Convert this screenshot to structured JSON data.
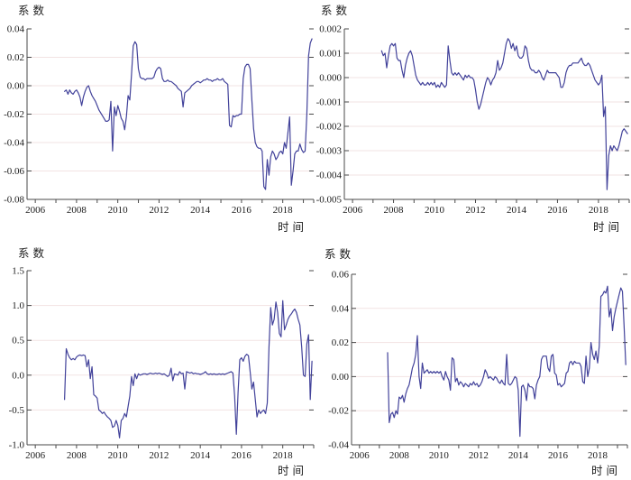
{
  "page": {
    "background": "#ffffff",
    "description_labels": {
      "y_axis_title": "系数",
      "x_axis_title": "时间"
    }
  },
  "chart_data": [
    {
      "id": "top-left",
      "type": "line",
      "title": "",
      "ylabel": "系数",
      "xlabel": "时间",
      "line_color": "#42429a",
      "grid_color": "#f2e3e3",
      "axis_color": "#4a4a4a",
      "grid": true,
      "legend": false,
      "ylim": [
        -0.08,
        0.04
      ],
      "yticks": [
        0.04,
        0.02,
        0,
        -0.02,
        -0.04,
        -0.06,
        -0.08
      ],
      "ytick_labels": [
        "0.04",
        "0.02",
        "0.00",
        "-0.02",
        "-0.04",
        "-0.06",
        "-0.08"
      ],
      "xlim": [
        2005.6,
        2019.5
      ],
      "xticks": [
        [
          2006,
          "2006"
        ],
        [
          2007,
          ""
        ],
        [
          2008,
          "2008"
        ],
        [
          2009,
          ""
        ],
        [
          2010,
          "2010"
        ],
        [
          2011,
          ""
        ],
        [
          2012,
          "2012"
        ],
        [
          2013,
          ""
        ],
        [
          2014,
          "2014"
        ],
        [
          2015,
          ""
        ],
        [
          2016,
          "2016"
        ],
        [
          2017,
          ""
        ],
        [
          2018,
          "2018"
        ],
        [
          2019,
          ""
        ],
        [
          2019.5,
          ""
        ]
      ],
      "series": {
        "name": "系数",
        "x_start": 2007.417,
        "x_step": 0.08333,
        "values": [
          -0.004,
          -0.003,
          -0.006,
          -0.003,
          -0.005,
          -0.006,
          -0.004,
          -0.003,
          -0.005,
          -0.008,
          -0.014,
          -0.008,
          -0.004,
          -0.001,
          0,
          -0.004,
          -0.007,
          -0.009,
          -0.011,
          -0.014,
          -0.017,
          -0.019,
          -0.021,
          -0.023,
          -0.025,
          -0.025,
          -0.024,
          -0.011,
          -0.046,
          -0.015,
          -0.021,
          -0.014,
          -0.018,
          -0.023,
          -0.025,
          -0.031,
          -0.022,
          -0.007,
          -0.01,
          0.008,
          0.028,
          0.031,
          0.029,
          0.012,
          0.006,
          0.005,
          0.005,
          0.004,
          0.005,
          0.005,
          0.005,
          0.005,
          0.006,
          0.01,
          0.012,
          0.013,
          0.012,
          0.005,
          0.003,
          0.003,
          0.004,
          0.003,
          0.003,
          0.002,
          0.001,
          0,
          -0.002,
          -0.003,
          -0.004,
          -0.015,
          -0.005,
          -0.004,
          -0.003,
          -0.002,
          0,
          0.001,
          0.002,
          0.003,
          0.003,
          0.002,
          0.003,
          0.004,
          0.004,
          0.005,
          0.004,
          0.004,
          0.003,
          0.004,
          0.004,
          0.005,
          0.004,
          0.004,
          0.005,
          0.003,
          0.002,
          0.001,
          -0.028,
          -0.029,
          -0.021,
          -0.022,
          -0.021,
          -0.021,
          -0.02,
          -0.02,
          0.005,
          0.013,
          0.015,
          0.015,
          0.012,
          -0.01,
          -0.03,
          -0.04,
          -0.043,
          -0.044,
          -0.044,
          -0.046,
          -0.071,
          -0.073,
          -0.052,
          -0.063,
          -0.05,
          -0.046,
          -0.048,
          -0.052,
          -0.05,
          -0.047,
          -0.046,
          -0.048,
          -0.04,
          -0.044,
          -0.033,
          -0.022,
          -0.07,
          -0.06,
          -0.048,
          -0.046,
          -0.046,
          -0.041,
          -0.045,
          -0.047,
          -0.046,
          -0.02,
          0.021,
          0.03,
          0.033
        ]
      }
    },
    {
      "id": "top-right",
      "type": "line",
      "title": "",
      "ylabel": "系数",
      "xlabel": "时间",
      "line_color": "#42429a",
      "grid_color": "#f2e3e3",
      "axis_color": "#4a4a4a",
      "grid": true,
      "legend": false,
      "ylim": [
        -0.005,
        0.002
      ],
      "yticks": [
        0.002,
        0.001,
        0,
        -0.001,
        -0.002,
        -0.003,
        -0.004,
        -0.005
      ],
      "ytick_labels": [
        "0.002",
        "0.001",
        "0.000",
        "-0.001",
        "-0.002",
        "-0.003",
        "-0.004",
        "-0.005"
      ],
      "xlim": [
        2005.6,
        2019.5
      ],
      "xticks": [
        [
          2006,
          "2006"
        ],
        [
          2007,
          ""
        ],
        [
          2008,
          "2008"
        ],
        [
          2009,
          ""
        ],
        [
          2010,
          "2010"
        ],
        [
          2011,
          ""
        ],
        [
          2012,
          "2012"
        ],
        [
          2013,
          ""
        ],
        [
          2014,
          "2014"
        ],
        [
          2015,
          ""
        ],
        [
          2016,
          "2016"
        ],
        [
          2017,
          ""
        ],
        [
          2018,
          "2018"
        ],
        [
          2019,
          ""
        ],
        [
          2019.5,
          ""
        ]
      ],
      "series": {
        "name": "系数",
        "x_start": 2007.417,
        "x_step": 0.08333,
        "values": [
          0.0011,
          0.0009,
          0.001,
          0.0004,
          0.0009,
          0.0013,
          0.0014,
          0.0013,
          0.0014,
          0.0008,
          0.0007,
          0.0007,
          0.0003,
          0,
          0.0005,
          0.0008,
          0.001,
          0.0011,
          0.0009,
          0.0005,
          0.0001,
          -0.0001,
          -0.0002,
          -0.0003,
          -0.0002,
          -0.0003,
          -0.0003,
          -0.0002,
          -0.0003,
          -0.0002,
          -0.0003,
          -0.0002,
          -0.0004,
          -0.0003,
          -0.0004,
          -0.0002,
          -0.0003,
          -0.0004,
          -0.0003,
          0.0013,
          0.0007,
          0.0002,
          0.0001,
          0.0002,
          0.0001,
          0.0002,
          0.0001,
          0,
          -0.0001,
          0.0001,
          0,
          0.0001,
          0,
          0,
          -0.0001,
          -0.0005,
          -0.001,
          -0.0013,
          -0.0011,
          -0.0008,
          -0.0005,
          -0.0002,
          0,
          -0.0001,
          -0.0003,
          -0.0001,
          0,
          0.0002,
          0.0007,
          0.0003,
          0.0004,
          0.0006,
          0.001,
          0.0014,
          0.0016,
          0.0015,
          0.0012,
          0.0014,
          0.0011,
          0.0013,
          0.0009,
          0.0008,
          0.0008,
          0.0009,
          0.0013,
          0.0012,
          0.0007,
          0.0004,
          0.0003,
          0.0003,
          0.0002,
          0.0002,
          0.0003,
          0.0002,
          0,
          -0.0001,
          0.0001,
          0.0003,
          0.0002,
          0.0002,
          0.0002,
          0.0002,
          0.0002,
          0.0001,
          0,
          -0.0004,
          -0.0004,
          -0.0002,
          0.0002,
          0.0004,
          0.0005,
          0.0005,
          0.0006,
          0.0006,
          0.0006,
          0.0006,
          0.0007,
          0.0008,
          0.0006,
          0.0005,
          0.0005,
          0.0006,
          0.0005,
          0.0003,
          0.0001,
          -0.0001,
          -0.0002,
          -0.0003,
          -0.0002,
          0.0001,
          -0.0016,
          -0.0012,
          -0.0046,
          -0.0032,
          -0.0028,
          -0.003,
          -0.0028,
          -0.0029,
          -0.003,
          -0.0028,
          -0.0025,
          -0.0022,
          -0.0021,
          -0.0022,
          -0.0023
        ]
      }
    },
    {
      "id": "bottom-left",
      "type": "line",
      "title": "",
      "ylabel": "系数",
      "xlabel": "时间",
      "line_color": "#42429a",
      "grid_color": "#f2e3e3",
      "axis_color": "#4a4a4a",
      "grid": true,
      "legend": false,
      "ylim": [
        -1.0,
        1.5
      ],
      "yticks": [
        1.5,
        1.0,
        0.5,
        0,
        -0.5,
        -1.0
      ],
      "ytick_labels": [
        "1.5",
        "1.0",
        "0.5",
        "0.0",
        "-0.5",
        "-1.0"
      ],
      "xlim": [
        2005.6,
        2019.5
      ],
      "xticks": [
        [
          2006,
          "2006"
        ],
        [
          2007,
          ""
        ],
        [
          2008,
          "2008"
        ],
        [
          2009,
          ""
        ],
        [
          2010,
          "2010"
        ],
        [
          2011,
          ""
        ],
        [
          2012,
          "2012"
        ],
        [
          2013,
          ""
        ],
        [
          2014,
          "2014"
        ],
        [
          2015,
          ""
        ],
        [
          2016,
          "2016"
        ],
        [
          2017,
          ""
        ],
        [
          2018,
          "2018"
        ],
        [
          2019,
          ""
        ],
        [
          2019.5,
          ""
        ]
      ],
      "series": {
        "name": "系数",
        "x_start": 2007.417,
        "x_step": 0.08333,
        "values": [
          -0.35,
          0.38,
          0.3,
          0.25,
          0.22,
          0.24,
          0.22,
          0.26,
          0.28,
          0.29,
          0.28,
          0.29,
          0.28,
          0.12,
          0.22,
          -0.05,
          0.12,
          -0.28,
          -0.3,
          -0.33,
          -0.5,
          -0.52,
          -0.55,
          -0.53,
          -0.57,
          -0.6,
          -0.62,
          -0.65,
          -0.75,
          -0.73,
          -0.65,
          -0.72,
          -0.9,
          -0.65,
          -0.62,
          -0.55,
          -0.6,
          -0.45,
          -0.3,
          -0.02,
          -0.15,
          0.02,
          -0.05,
          0.02,
          0,
          0.01,
          0.02,
          0.02,
          0.01,
          0.02,
          0.03,
          0.02,
          0.02,
          0.03,
          0.02,
          0.03,
          0.02,
          0.01,
          0.02,
          0,
          -0.02,
          0,
          0.1,
          -0.08,
          0.02,
          0.01,
          0,
          0.05,
          0.02,
          0.03,
          -0.2,
          0.05,
          0.04,
          0.03,
          0.04,
          0.02,
          0.03,
          0.02,
          0.02,
          0.01,
          0.02,
          0.03,
          0.05,
          0.02,
          0.01,
          0.02,
          0.01,
          0.02,
          0.01,
          0.01,
          0.02,
          0.01,
          0.02,
          0.01,
          0.02,
          0.03,
          0.04,
          0.05,
          0.03,
          -0.3,
          -0.85,
          -0.25,
          0.22,
          0.25,
          0.2,
          0.27,
          0.3,
          0.28,
          0.05,
          -0.2,
          -0.1,
          -0.35,
          -0.6,
          -0.5,
          -0.55,
          -0.52,
          -0.5,
          -0.55,
          -0.4,
          0.4,
          0.97,
          0.72,
          0.8,
          1.05,
          0.9,
          0.6,
          0.55,
          1.07,
          0.65,
          0.72,
          0.8,
          0.85,
          0.88,
          0.92,
          0.95,
          0.9,
          0.8,
          0.72,
          0.4,
          0,
          -0.02,
          0.45,
          0.58,
          -0.35,
          0.2
        ]
      }
    },
    {
      "id": "bottom-right",
      "type": "line",
      "title": "",
      "ylabel": "系数",
      "xlabel": "时间",
      "line_color": "#42429a",
      "grid_color": "#f2e3e3",
      "axis_color": "#4a4a4a",
      "grid": true,
      "legend": false,
      "ylim": [
        -0.04,
        0.06
      ],
      "yticks": [
        0.06,
        0.04,
        0.02,
        0,
        -0.02,
        -0.04
      ],
      "ytick_labels": [
        "0.06",
        "0.04",
        "0.02",
        "0.00",
        "-0.02",
        "-0.04"
      ],
      "xlim": [
        2005.6,
        2019.5
      ],
      "xticks": [
        [
          2006,
          "2006"
        ],
        [
          2007,
          ""
        ],
        [
          2008,
          "2008"
        ],
        [
          2009,
          ""
        ],
        [
          2010,
          "2010"
        ],
        [
          2011,
          ""
        ],
        [
          2012,
          "2012"
        ],
        [
          2013,
          ""
        ],
        [
          2014,
          "2014"
        ],
        [
          2015,
          ""
        ],
        [
          2016,
          "2016"
        ],
        [
          2017,
          ""
        ],
        [
          2018,
          "2018"
        ],
        [
          2019,
          ""
        ],
        [
          2019.5,
          ""
        ]
      ],
      "series": {
        "name": "系数",
        "x_start": 2007.417,
        "x_step": 0.08333,
        "values": [
          0.014,
          -0.027,
          -0.022,
          -0.021,
          -0.024,
          -0.02,
          -0.022,
          -0.012,
          -0.013,
          -0.011,
          -0.015,
          -0.01,
          -0.007,
          -0.005,
          0,
          0.005,
          0.008,
          0.013,
          0.024,
          0,
          -0.007,
          0.008,
          0.002,
          0.003,
          0.004,
          0.002,
          0.003,
          0.002,
          0.003,
          0.002,
          0.003,
          0.002,
          0.003,
          0,
          -0.002,
          0.003,
          0,
          -0.002,
          -0.008,
          0.011,
          0.01,
          -0.003,
          -0.001,
          -0.005,
          -0.003,
          -0.004,
          -0.006,
          -0.004,
          -0.005,
          -0.006,
          -0.004,
          -0.005,
          -0.003,
          -0.005,
          -0.004,
          -0.006,
          -0.005,
          -0.003,
          0,
          0.004,
          0.002,
          -0.001,
          0,
          -0.001,
          -0.002,
          0,
          -0.001,
          -0.003,
          -0.004,
          -0.002,
          -0.004,
          -0.005,
          0.013,
          -0.004,
          -0.005,
          -0.004,
          -0.002,
          0,
          -0.001,
          -0.008,
          -0.035,
          -0.006,
          -0.005,
          -0.008,
          -0.014,
          -0.004,
          -0.006,
          -0.006,
          -0.007,
          -0.013,
          -0.005,
          -0.002,
          0,
          0.01,
          0.012,
          0.012,
          0.012,
          0.005,
          0.003,
          0.012,
          0.013,
          0.002,
          0.001,
          -0.005,
          -0.004,
          -0.006,
          -0.005,
          -0.004,
          0.002,
          0.003,
          0.008,
          0.009,
          0.007,
          0.009,
          0.008,
          0.008,
          0.008,
          0.006,
          -0.003,
          -0.004,
          0.012,
          0,
          0.005,
          0.02,
          0.013,
          0.01,
          0.015,
          0.008,
          0.018,
          0.047,
          0.048,
          0.05,
          0.049,
          0.053,
          0.035,
          0.04,
          0.027,
          0.035,
          0.04,
          0.044,
          0.048,
          0.052,
          0.05,
          0.03,
          0.007
        ]
      }
    }
  ]
}
